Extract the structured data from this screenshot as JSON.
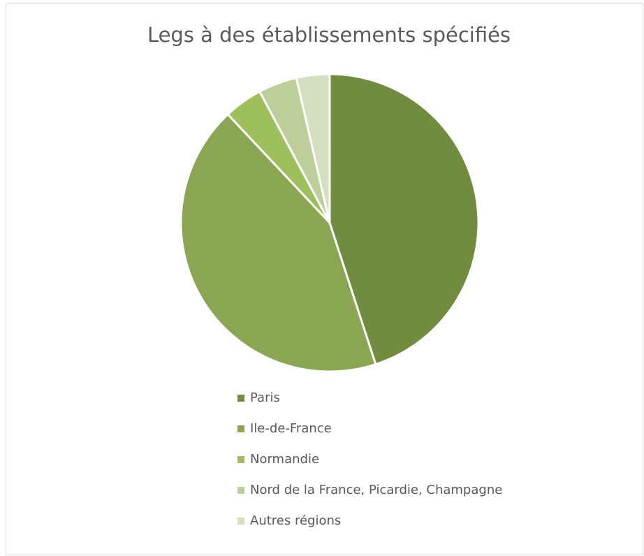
{
  "chart_data": {
    "type": "pie",
    "title": "Legs à des établissements spécifiés",
    "categories": [
      "Paris",
      "Ile-de-France",
      "Normandie",
      "Nord de la France, Picardie, Champagne",
      "Autres régions"
    ],
    "values": [
      45,
      43,
      4.2,
      4.2,
      3.6
    ],
    "colors": [
      "#728c3f",
      "#8aa652",
      "#9dbf5c",
      "#bccf9a",
      "#d4dfc2"
    ],
    "legend": "bottom"
  }
}
